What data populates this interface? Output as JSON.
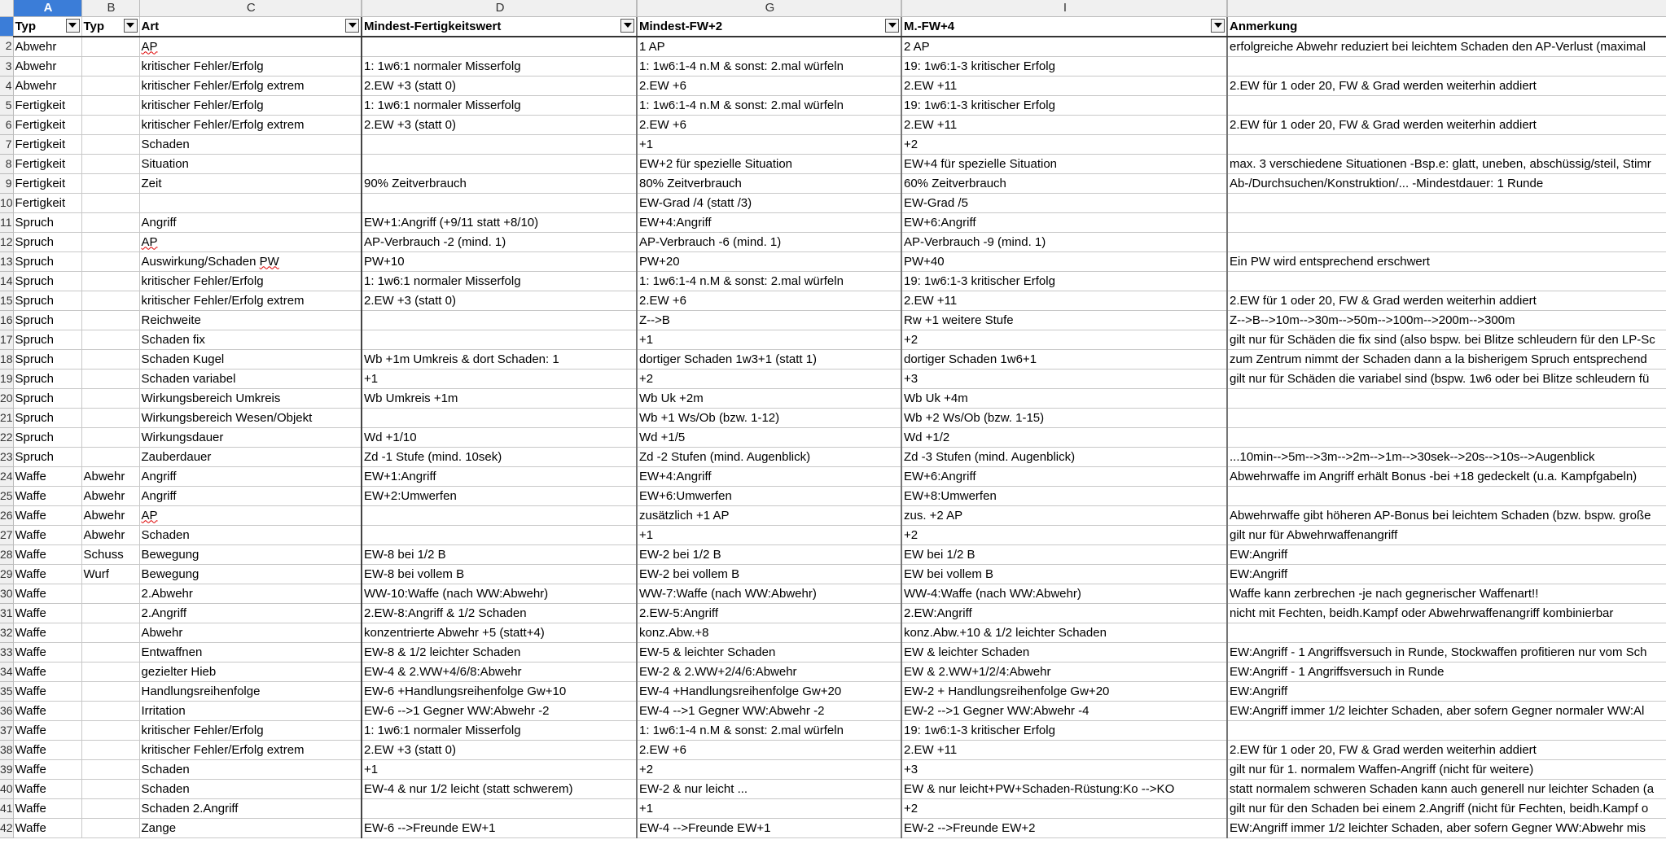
{
  "column_letters": [
    "A",
    "B",
    "C",
    "D",
    "G",
    "I",
    ""
  ],
  "selected_column": "A",
  "headers": [
    "Typ",
    "Typ",
    "Art",
    "Mindest-Fertigkeitswert",
    "Mindest-FW+2",
    "M.-FW+4",
    "Anmerkung"
  ],
  "header_has_filter": [
    true,
    true,
    true,
    true,
    true,
    true,
    false
  ],
  "row_numbers": [
    "2",
    "3",
    "4",
    "5",
    "6",
    "7",
    "8",
    "9",
    "10",
    "11",
    "12",
    "13",
    "14",
    "15",
    "16",
    "17",
    "18",
    "19",
    "20",
    "21",
    "22",
    "23",
    "24",
    "25",
    "26",
    "27",
    "28",
    "29",
    "30",
    "31",
    "32",
    "33",
    "34",
    "35",
    "36",
    "37",
    "38",
    "39",
    "40",
    "41",
    "42"
  ],
  "rows": [
    [
      "Abwehr",
      "",
      "AP",
      "",
      "1 AP",
      "2 AP",
      "erfolgreiche Abwehr reduziert bei leichtem Schaden den AP-Verlust (maximal"
    ],
    [
      "Abwehr",
      "",
      "kritischer Fehler/Erfolg",
      "1: 1w6:1 normaler Misserfolg",
      "1: 1w6:1-4 n.M & sonst: 2.mal würfeln",
      "19: 1w6:1-3 kritischer Erfolg",
      ""
    ],
    [
      "Abwehr",
      "",
      "kritischer Fehler/Erfolg extrem",
      "2.EW +3 (statt 0)",
      "2.EW +6",
      "2.EW +11",
      "2.EW für 1 oder 20, FW & Grad werden weiterhin addiert"
    ],
    [
      "Fertigkeit",
      "",
      "kritischer Fehler/Erfolg",
      "1: 1w6:1 normaler Misserfolg",
      "1: 1w6:1-4 n.M & sonst: 2.mal würfeln",
      "19: 1w6:1-3 kritischer Erfolg",
      ""
    ],
    [
      "Fertigkeit",
      "",
      "kritischer Fehler/Erfolg extrem",
      "2.EW +3 (statt 0)",
      "2.EW +6",
      "2.EW +11",
      "2.EW für 1 oder 20, FW & Grad werden weiterhin addiert"
    ],
    [
      "Fertigkeit",
      "",
      "Schaden",
      "",
      "+1",
      "+2",
      ""
    ],
    [
      "Fertigkeit",
      "",
      "Situation",
      "",
      "EW+2 für spezielle Situation",
      "EW+4 für spezielle Situation",
      "max. 3 verschiedene Situationen -Bsp.e: glatt, uneben, abschüssig/steil, Stimr"
    ],
    [
      "Fertigkeit",
      "",
      "Zeit",
      "90% Zeitverbrauch",
      "80% Zeitverbrauch",
      "60% Zeitverbrauch",
      "Ab-/Durchsuchen/Konstruktion/... -Mindestdauer: 1 Runde"
    ],
    [
      "Fertigkeit",
      "",
      "",
      "",
      "EW-Grad /4 (statt /3)",
      "EW-Grad /5",
      ""
    ],
    [
      "Spruch",
      "",
      "Angriff",
      "EW+1:Angriff (+9/11 statt +8/10)",
      "EW+4:Angriff",
      "EW+6:Angriff",
      ""
    ],
    [
      "Spruch",
      "",
      "AP",
      "AP-Verbrauch -2 (mind. 1)",
      "AP-Verbrauch -6 (mind. 1)",
      "AP-Verbrauch -9 (mind. 1)",
      ""
    ],
    [
      "Spruch",
      "",
      "Auswirkung/Schaden PW",
      "PW+10",
      "PW+20",
      "PW+40",
      "Ein PW wird entsprechend erschwert"
    ],
    [
      "Spruch",
      "",
      "kritischer Fehler/Erfolg",
      "1: 1w6:1 normaler Misserfolg",
      "1: 1w6:1-4 n.M & sonst: 2.mal würfeln",
      "19: 1w6:1-3 kritischer Erfolg",
      ""
    ],
    [
      "Spruch",
      "",
      "kritischer Fehler/Erfolg extrem",
      "2.EW +3 (statt 0)",
      "2.EW +6",
      "2.EW +11",
      "2.EW für 1 oder 20, FW & Grad werden weiterhin addiert"
    ],
    [
      "Spruch",
      "",
      "Reichweite",
      "",
      "Z-->B",
      "Rw +1 weitere Stufe",
      "Z-->B-->10m-->30m-->50m-->100m-->200m-->300m"
    ],
    [
      "Spruch",
      "",
      "Schaden fix",
      "",
      "+1",
      "+2",
      "gilt nur für Schäden die fix sind (also bspw. bei Blitze schleudern für den LP-Sc"
    ],
    [
      "Spruch",
      "",
      "Schaden Kugel",
      "Wb +1m Umkreis & dort Schaden: 1",
      "dortiger Schaden 1w3+1 (statt 1)",
      "dortiger Schaden 1w6+1",
      "zum Zentrum nimmt der Schaden dann a la bisherigem Spruch entsprechend"
    ],
    [
      "Spruch",
      "",
      "Schaden variabel",
      "+1",
      "+2",
      "+3",
      "gilt nur für Schäden die variabel sind (bspw. 1w6 oder bei Blitze schleudern fü"
    ],
    [
      "Spruch",
      "",
      "Wirkungsbereich Umkreis",
      "Wb Umkreis +1m",
      "Wb Uk +2m",
      "Wb Uk +4m",
      ""
    ],
    [
      "Spruch",
      "",
      "Wirkungsbereich Wesen/Objekt",
      "",
      "Wb +1 Ws/Ob (bzw. 1-12)",
      "Wb +2 Ws/Ob (bzw. 1-15)",
      ""
    ],
    [
      "Spruch",
      "",
      "Wirkungsdauer",
      "Wd +1/10",
      "Wd +1/5",
      "Wd +1/2",
      ""
    ],
    [
      "Spruch",
      "",
      "Zauberdauer",
      "Zd -1 Stufe (mind. 10sek)",
      "Zd -2 Stufen (mind. Augenblick)",
      "Zd -3 Stufen (mind. Augenblick)",
      "...10min-->5m-->3m-->2m-->1m-->30sek-->20s-->10s-->Augenblick"
    ],
    [
      "Waffe",
      "Abwehr",
      "Angriff",
      "EW+1:Angriff",
      "EW+4:Angriff",
      "EW+6:Angriff",
      "Abwehrwaffe im Angriff erhält Bonus -bei +18 gedeckelt (u.a. Kampfgabeln)"
    ],
    [
      "Waffe",
      "Abwehr",
      "Angriff",
      "EW+2:Umwerfen",
      "EW+6:Umwerfen",
      "EW+8:Umwerfen",
      ""
    ],
    [
      "Waffe",
      "Abwehr",
      "AP",
      "",
      "zusätzlich +1 AP",
      "zus. +2 AP",
      "Abwehrwaffe gibt höheren AP-Bonus bei leichtem Schaden (bzw. bspw. große"
    ],
    [
      "Waffe",
      "Abwehr",
      "Schaden",
      "",
      "+1",
      "+2",
      "gilt nur für Abwehrwaffenangriff"
    ],
    [
      "Waffe",
      "Schuss",
      "Bewegung",
      "EW-8 bei 1/2 B",
      "EW-2 bei 1/2 B",
      "EW bei 1/2 B",
      "EW:Angriff"
    ],
    [
      "Waffe",
      "Wurf",
      "Bewegung",
      "EW-8 bei vollem B",
      "EW-2 bei vollem B",
      "EW bei vollem B",
      "EW:Angriff"
    ],
    [
      "Waffe",
      "",
      "2.Abwehr",
      "WW-10:Waffe (nach WW:Abwehr)",
      "WW-7:Waffe (nach WW:Abwehr)",
      "WW-4:Waffe (nach WW:Abwehr)",
      "Waffe kann zerbrechen -je nach gegnerischer Waffenart!!"
    ],
    [
      "Waffe",
      "",
      "2.Angriff",
      "2.EW-8:Angriff & 1/2 Schaden",
      "2.EW-5:Angriff",
      "2.EW:Angriff",
      "nicht mit Fechten, beidh.Kampf oder Abwehrwaffenangriff kombinierbar"
    ],
    [
      "Waffe",
      "",
      "Abwehr",
      "konzentrierte Abwehr +5 (statt+4)",
      "konz.Abw.+8",
      "konz.Abw.+10 & 1/2 leichter Schaden",
      ""
    ],
    [
      "Waffe",
      "",
      "Entwaffnen",
      "EW-8 & 1/2 leichter Schaden",
      "EW-5 & leichter Schaden",
      "EW & leichter Schaden",
      "EW:Angriff - 1 Angriffsversuch in Runde, Stockwaffen profitieren nur vom Sch"
    ],
    [
      "Waffe",
      "",
      "gezielter Hieb",
      "EW-4 & 2.WW+4/6/8:Abwehr",
      "EW-2 & 2.WW+2/4/6:Abwehr",
      "EW & 2.WW+1/2/4:Abwehr",
      "EW:Angriff - 1 Angriffsversuch in Runde"
    ],
    [
      "Waffe",
      "",
      "Handlungsreihenfolge",
      "EW-6 +Handlungsreihenfolge Gw+10",
      "EW-4 +Handlungsreihenfolge Gw+20",
      "EW-2 + Handlungsreihenfolge Gw+20",
      "EW:Angriff"
    ],
    [
      "Waffe",
      "",
      "Irritation",
      "EW-6 -->1 Gegner WW:Abwehr -2",
      "EW-4 -->1 Gegner WW:Abwehr -2",
      "EW-2 -->1 Gegner WW:Abwehr -4",
      "EW:Angriff immer 1/2 leichter Schaden, aber sofern Gegner normaler WW:Al"
    ],
    [
      "Waffe",
      "",
      "kritischer Fehler/Erfolg",
      "1: 1w6:1 normaler Misserfolg",
      "1: 1w6:1-4 n.M & sonst: 2.mal würfeln",
      "19: 1w6:1-3 kritischer Erfolg",
      ""
    ],
    [
      "Waffe",
      "",
      "kritischer Fehler/Erfolg extrem",
      "2.EW +3 (statt 0)",
      "2.EW +6",
      "2.EW +11",
      "2.EW für 1 oder 20, FW & Grad werden weiterhin addiert"
    ],
    [
      "Waffe",
      "",
      "Schaden",
      "+1",
      "+2",
      "+3",
      "gilt nur für 1. normalem Waffen-Angriff (nicht für weitere)"
    ],
    [
      "Waffe",
      "",
      "Schaden",
      "EW-4 & nur 1/2 leicht (statt schwerem)",
      "EW-2 & nur leicht ...",
      "EW & nur leicht+PW+Schaden-Rüstung:Ko -->KO",
      "statt normalem schweren Schaden kann auch generell nur leichter Schaden (a"
    ],
    [
      "Waffe",
      "",
      "Schaden 2.Angriff",
      "",
      "+1",
      "+2",
      "gilt nur für den Schaden bei einem 2.Angriff (nicht für Fechten, beidh.Kampf o"
    ],
    [
      "Waffe",
      "",
      "Zange",
      "EW-6 -->Freunde EW+1",
      "EW-4 -->Freunde EW+1",
      "EW-2 -->Freunde EW+2",
      "EW:Angriff immer 1/2 leichter Schaden, aber sofern Gegner WW:Abwehr mis"
    ]
  ]
}
